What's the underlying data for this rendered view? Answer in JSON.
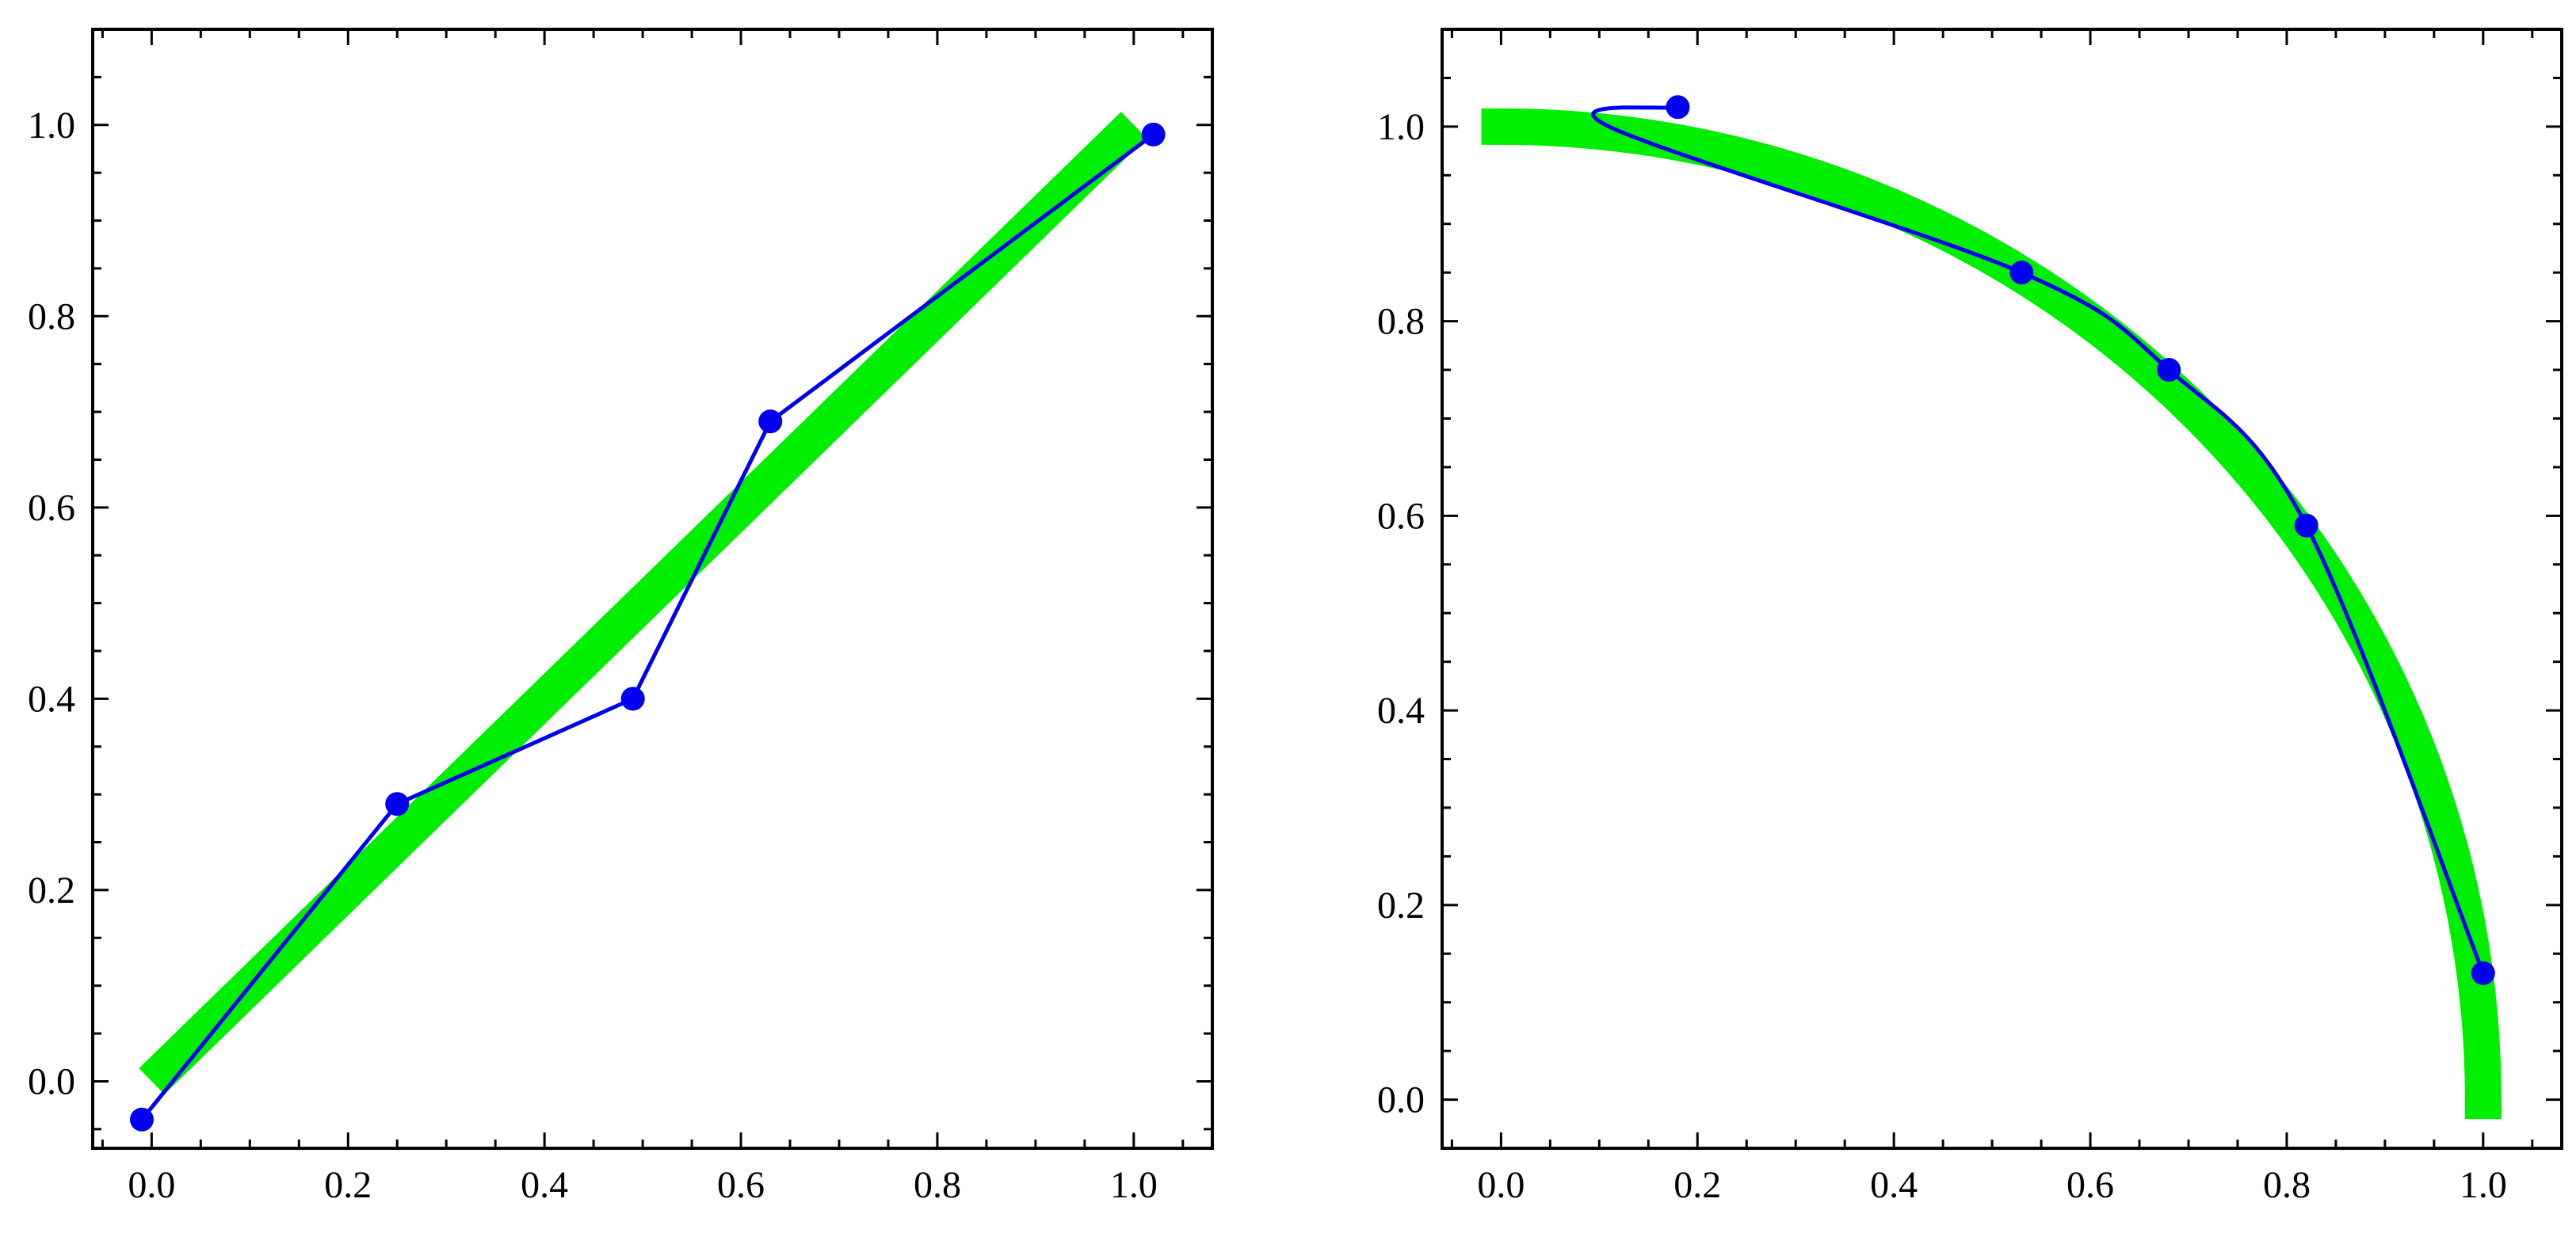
{
  "colors": {
    "reference": "#00ee00",
    "series": "#0000ee",
    "frame": "#000000"
  },
  "chart_data": [
    {
      "type": "line",
      "title": "",
      "xlabel": "",
      "ylabel": "",
      "xlim": [
        -0.06,
        1.08
      ],
      "ylim": [
        -0.07,
        1.1
      ],
      "xticks": [
        "0.0",
        "0.2",
        "0.4",
        "0.6",
        "0.8",
        "1.0"
      ],
      "yticks": [
        "0.0",
        "0.2",
        "0.4",
        "0.6",
        "0.8",
        "1.0"
      ],
      "grid": false,
      "reference_curve": {
        "kind": "line",
        "from": [
          0.0,
          0.0
        ],
        "to": [
          1.0,
          1.0
        ]
      },
      "series": [
        {
          "points": [
            [
              -0.01,
              -0.04
            ],
            [
              0.25,
              0.29
            ],
            [
              0.49,
              0.4
            ],
            [
              0.63,
              0.69
            ],
            [
              1.02,
              0.99
            ]
          ],
          "interpolation": "linear"
        }
      ]
    },
    {
      "type": "line",
      "title": "",
      "xlabel": "",
      "ylabel": "",
      "xlim": [
        -0.06,
        1.08
      ],
      "ylim": [
        -0.05,
        1.1
      ],
      "xticks": [
        "0.0",
        "0.2",
        "0.4",
        "0.6",
        "0.8",
        "1.0"
      ],
      "yticks": [
        "0.0",
        "0.2",
        "0.4",
        "0.6",
        "0.8",
        "1.0"
      ],
      "grid": false,
      "reference_curve": {
        "kind": "quarter-circle",
        "center": [
          0,
          0
        ],
        "radius": 1.0
      },
      "series": [
        {
          "points": [
            [
              0.18,
              1.02
            ],
            [
              0.11,
              1.0
            ],
            [
              0.53,
              0.85
            ],
            [
              0.68,
              0.75
            ],
            [
              0.82,
              0.59
            ],
            [
              1.0,
              0.13
            ]
          ],
          "markers": [
            [
              0.18,
              1.02
            ],
            [
              0.53,
              0.85
            ],
            [
              0.68,
              0.75
            ],
            [
              0.82,
              0.59
            ],
            [
              1.0,
              0.13
            ]
          ],
          "interpolation": "smooth"
        }
      ]
    }
  ]
}
